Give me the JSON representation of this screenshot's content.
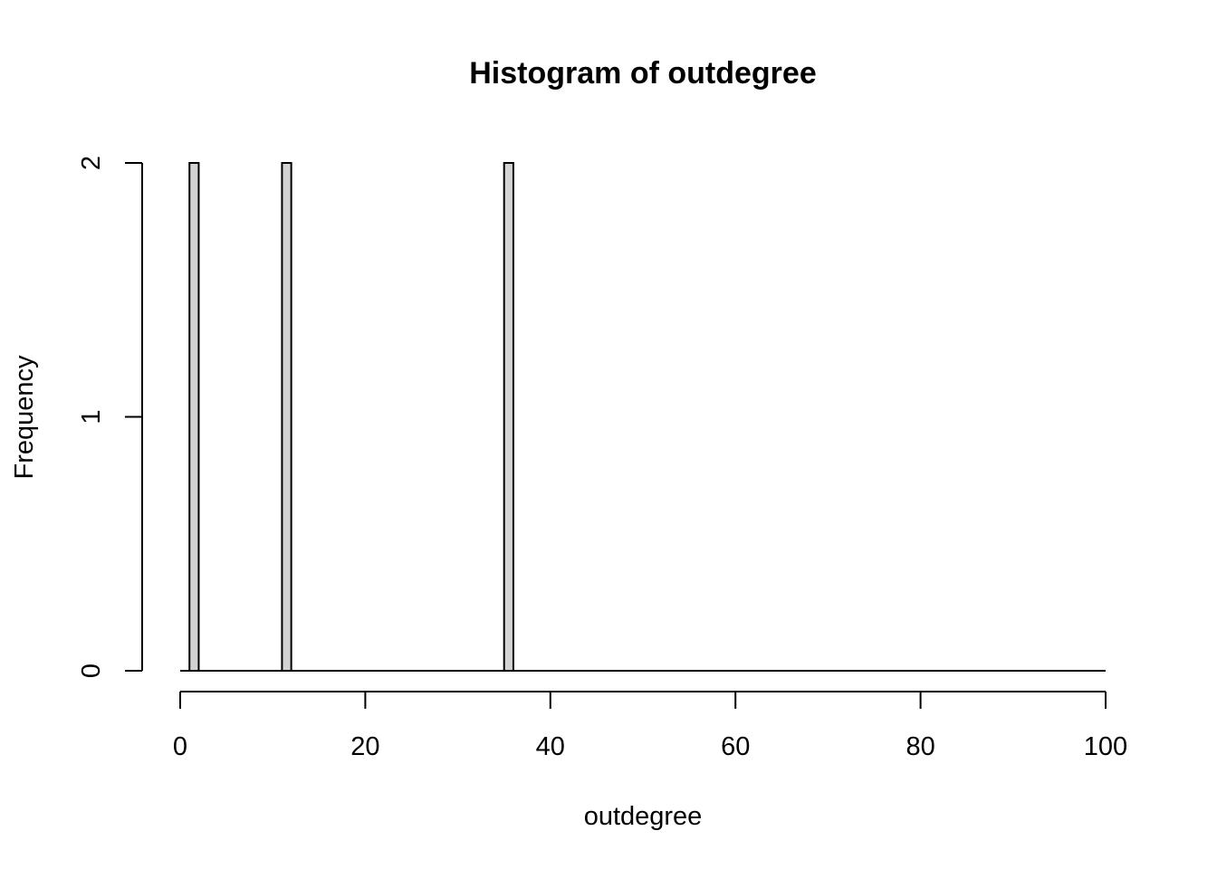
{
  "chart_data": {
    "type": "bar",
    "title": "Histogram of outdegree",
    "xlabel": "outdegree",
    "ylabel": "Frequency",
    "xlim": [
      0,
      100
    ],
    "ylim": [
      0,
      2
    ],
    "x_ticks": [
      0,
      20,
      40,
      60,
      80,
      100
    ],
    "y_ticks": [
      0,
      1,
      2
    ],
    "bin_width": 1,
    "bins": [
      {
        "start": 1,
        "end": 2,
        "count": 2
      },
      {
        "start": 11,
        "end": 12,
        "count": 2
      },
      {
        "start": 35,
        "end": 36,
        "count": 2
      }
    ],
    "bar_fill": "#d3d3d3",
    "grid": false,
    "legend": "none"
  }
}
